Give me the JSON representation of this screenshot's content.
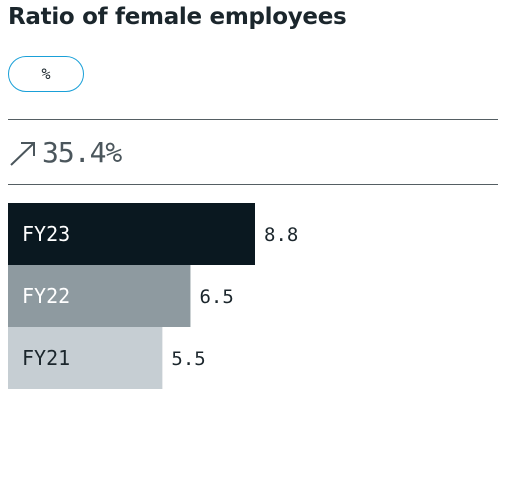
{
  "header": {
    "title": "Ratio of female employees",
    "unit": "%"
  },
  "change": {
    "icon": "arrow-up-right-icon",
    "value": "35.4%"
  },
  "colors": {
    "pill_border": "#1aa0d8",
    "bar_fy23": "#0a1820",
    "bar_fy22": "#8e9aa0",
    "bar_fy21": "#c6ced3"
  },
  "chart_data": {
    "type": "bar",
    "orientation": "horizontal",
    "categories": [
      "FY23",
      "FY22",
      "FY21"
    ],
    "values": [
      8.8,
      6.5,
      5.5
    ],
    "value_labels": [
      "8.8",
      "6.5",
      "5.5"
    ],
    "colors": [
      "#0a1820",
      "#8e9aa0",
      "#c6ced3"
    ],
    "label_colors": [
      "#ffffff",
      "#ffffff",
      "#1b262c"
    ]
  }
}
